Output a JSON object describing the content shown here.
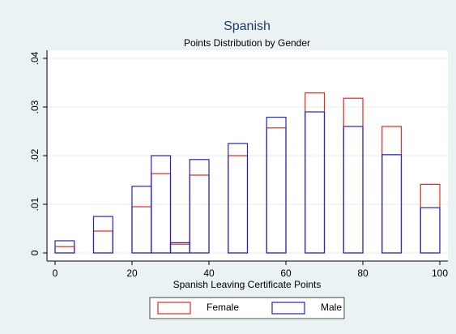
{
  "chart_data": {
    "type": "histogram",
    "title": "Spanish",
    "subtitle": "Points Distribution by Gender",
    "x_label": "Spanish Leaving Certificate Points",
    "bins": [
      0,
      5,
      10,
      15,
      20,
      25,
      30,
      35,
      40,
      45,
      50,
      55,
      60,
      65,
      70,
      75,
      80,
      85,
      90,
      95,
      100
    ],
    "series": [
      {
        "name": "Female",
        "color": "#e8271f",
        "values": [
          0.0013,
          0,
          0.0045,
          0,
          0.0095,
          0.0163,
          0.0018,
          0.016,
          0,
          0.02,
          0,
          0.0257,
          0,
          0.0329,
          0,
          0.0318,
          0,
          0.026,
          0,
          0.0141
        ]
      },
      {
        "name": "Male",
        "color": "#2323c8",
        "values": [
          0.0025,
          0,
          0.0075,
          0,
          0.0137,
          0.02,
          0.0021,
          0.0192,
          0,
          0.0225,
          0,
          0.0279,
          0,
          0.029,
          0,
          0.026,
          0,
          0.0202,
          0,
          0.0093
        ]
      }
    ],
    "xlim": [
      0,
      100
    ],
    "xticks": [
      0,
      20,
      40,
      60,
      80,
      100
    ],
    "ylim": [
      0,
      0.04
    ],
    "yticks": [
      0,
      {
        "value": 0.01,
        "label": ".01"
      },
      {
        "value": 0.02,
        "label": ".02"
      },
      {
        "value": 0.03,
        "label": ".03"
      },
      {
        "value": 0.04,
        "label": ".04"
      }
    ],
    "grid": true
  }
}
